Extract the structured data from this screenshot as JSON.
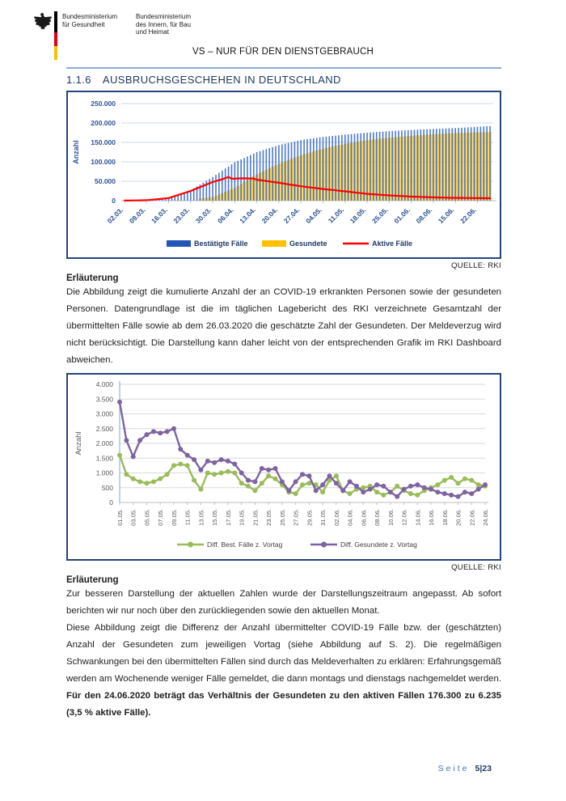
{
  "header": {
    "ministry1": {
      "line1": "Bundesministerium",
      "line2": "für Gesundheit"
    },
    "ministry2": {
      "line1": "Bundesministerium",
      "line2": "des Innern, für Bau",
      "line3": "und Heimat"
    },
    "classification": "VS – NUR FÜR DEN DIENSTGEBRAUCH"
  },
  "section": {
    "number": "1.1.6",
    "title": "AUSBRUCHSGESCHEHEN IN DEUTSCHLAND"
  },
  "source_label": "QUELLE: RKI",
  "explanation1": {
    "heading": "Erläuterung",
    "text": "Die Abbildung zeigt die kumulierte Anzahl der an COVID-19 erkrankten Personen sowie der gesundeten Personen. Datengrundlage ist die im täglichen Lagebericht des RKI verzeichnete Gesamtzahl der übermittelten Fälle sowie ab dem 26.03.2020 die geschätzte Zahl der Gesundeten. Der Meldeverzug wird nicht berücksichtigt. Die Darstellung kann daher leicht von der entsprechenden Grafik im RKI Dashboard abweichen."
  },
  "explanation2": {
    "heading": "Erläuterung",
    "para1": "Zur besseren Darstellung der aktuellen Zahlen wurde der Darstellungszeitraum angepasst. Ab sofort berichten wir nur noch über den zurückliegenden sowie den aktuellen Monat.",
    "para2_normal": "Diese Abbildung zeigt die Differenz der Anzahl übermittelter COVID-19 Fälle bzw. der (geschätzten) Anzahl der Gesundeten zum jeweiligen Vortag (siehe Abbildung auf S. 2). Die regelmäßigen Schwankungen bei den übermittelten Fällen sind durch das Meldeverhalten zu erklären: Erfahrungsgemäß werden am Wochenende weniger Fälle gemeldet, die dann montags und dienstags nachgemeldet werden. ",
    "para2_bold": "Für den 24.06.2020 beträgt das Verhältnis der Gesundeten zu den aktiven Fällen 176.300 zu 6.235 (3,5 % aktive Fälle)."
  },
  "footer": {
    "label": "Seite",
    "page": "5|23"
  },
  "colors": {
    "accent_navy": "#1F3864",
    "divider_blue": "#8EAADB",
    "chart_border": "#24447C",
    "grid_blue": "#CDD9EA",
    "grid_gray": "#D9D9D9",
    "axis_navy": "#2E5396",
    "axis_gray": "#595959",
    "baseline_gray": "#BFBFBF",
    "vertical_axis_blue": "#9DC3E6",
    "footer_blue": "#4472C4",
    "flag_black": "#000000",
    "flag_red": "#E1001A",
    "flag_gold": "#F6C500"
  },
  "chart_data": [
    {
      "type": "bar",
      "title": "",
      "ylabel": "Anzahl",
      "ylim": [
        0,
        250000
      ],
      "ytick_step": 50000,
      "ytick_labels": [
        "0",
        "50.000",
        "100.000",
        "150.000",
        "200.000",
        "250.000"
      ],
      "x_range": [
        "02.03.",
        "26.06."
      ],
      "days": 117,
      "xtick_labels": [
        "02.03.",
        "09.03.",
        "16.03.",
        "23.03.",
        "30.03.",
        "06.04.",
        "13.04.",
        "20.04.",
        "27.04.",
        "04.05.",
        "11.05.",
        "18.05.",
        "25.05.",
        "01.06.",
        "08.06.",
        "15.06.",
        "22.06."
      ],
      "xtick_day_indices": [
        0,
        7,
        14,
        21,
        28,
        35,
        42,
        49,
        56,
        63,
        70,
        77,
        84,
        91,
        98,
        105,
        112
      ],
      "interpolation_note": "daily bars/line linearly interpolated between [day_index, value] anchors read from the chart",
      "series": [
        {
          "name": "Bestätigte Fälle",
          "render": "bar",
          "color": "#4C79CE",
          "legend_color": "#2255B4",
          "anchors": [
            [
              0,
              150
            ],
            [
              7,
              1100
            ],
            [
              14,
              6800
            ],
            [
              21,
              27000
            ],
            [
              28,
              61000
            ],
            [
              35,
              99000
            ],
            [
              42,
              125000
            ],
            [
              49,
              143000
            ],
            [
              56,
              156000
            ],
            [
              63,
              164000
            ],
            [
              70,
              170000
            ],
            [
              77,
              175000
            ],
            [
              84,
              179000
            ],
            [
              91,
              182000
            ],
            [
              98,
              184500
            ],
            [
              105,
              187000
            ],
            [
              112,
              190000
            ],
            [
              116,
              192000
            ]
          ]
        },
        {
          "name": "Gesundete",
          "render": "bar",
          "color": "#FFC000",
          "anchors": [
            [
              0,
              0
            ],
            [
              23,
              0
            ],
            [
              24,
              5600
            ],
            [
              28,
              9000
            ],
            [
              35,
              33000
            ],
            [
              42,
              68000
            ],
            [
              49,
              95000
            ],
            [
              56,
              117000
            ],
            [
              63,
              134000
            ],
            [
              70,
              146000
            ],
            [
              77,
              156000
            ],
            [
              84,
              162000
            ],
            [
              91,
              167000
            ],
            [
              98,
              171000
            ],
            [
              105,
              174000
            ],
            [
              112,
              176000
            ],
            [
              116,
              176300
            ]
          ]
        },
        {
          "name": "Aktive Fälle",
          "render": "line",
          "color": "#FF0000",
          "anchors": [
            [
              0,
              150
            ],
            [
              7,
              1100
            ],
            [
              14,
              6600
            ],
            [
              21,
              25000
            ],
            [
              28,
              48000
            ],
            [
              31,
              55000
            ],
            [
              33,
              61000
            ],
            [
              34,
              56500
            ],
            [
              38,
              57500
            ],
            [
              41,
              57000
            ],
            [
              42,
              54000
            ],
            [
              49,
              46000
            ],
            [
              56,
              37000
            ],
            [
              63,
              30000
            ],
            [
              70,
              24000
            ],
            [
              77,
              17500
            ],
            [
              84,
              13500
            ],
            [
              91,
              10500
            ],
            [
              98,
              8500
            ],
            [
              105,
              7200
            ],
            [
              112,
              6500
            ],
            [
              116,
              6200
            ]
          ]
        }
      ],
      "legend_position": "bottom",
      "grid": true
    },
    {
      "type": "line",
      "title": "",
      "ylabel": "Anzahl",
      "ylim": [
        0,
        4000
      ],
      "ytick_step": 500,
      "ytick_labels": [
        "0",
        "500",
        "1.000",
        "1.500",
        "2.000",
        "2.500",
        "3.000",
        "3.500",
        "4.000"
      ],
      "n_points": 55,
      "x_start": "01.05.",
      "x_end": "24.06.",
      "xtick_labels": [
        "01.05.",
        "03.05.",
        "05.05.",
        "07.05.",
        "09.05.",
        "11.05.",
        "13.05.",
        "15.05.",
        "17.05.",
        "19.05.",
        "21.05.",
        "23.05.",
        "25.05.",
        "27.05.",
        "29.05.",
        "31.05.",
        "02.06.",
        "04.06.",
        "06.06.",
        "08.06.",
        "10.06.",
        "12.06.",
        "14.06.",
        "16.06.",
        "18.06.",
        "20.06.",
        "22.06.",
        "24.06."
      ],
      "xtick_point_indices": [
        0,
        2,
        4,
        6,
        8,
        10,
        12,
        14,
        16,
        18,
        20,
        22,
        24,
        26,
        28,
        30,
        32,
        34,
        36,
        38,
        40,
        42,
        44,
        46,
        48,
        50,
        52,
        54
      ],
      "series": [
        {
          "name": "Diff. Best. Fälle z. Vortag",
          "color": "#9BBB59",
          "values": [
            1600,
            950,
            800,
            700,
            650,
            700,
            800,
            950,
            1250,
            1300,
            1250,
            750,
            450,
            1000,
            950,
            1000,
            1050,
            1000,
            650,
            550,
            400,
            650,
            900,
            800,
            600,
            350,
            300,
            600,
            650,
            600,
            350,
            750,
            900,
            400,
            300,
            450,
            500,
            550,
            350,
            250,
            350,
            550,
            400,
            300,
            250,
            400,
            500,
            600,
            750,
            850,
            650,
            800,
            750,
            600,
            550
          ]
        },
        {
          "name": "Diff. Gesundete z. Vortag",
          "color": "#7E63A1",
          "values": [
            3400,
            2100,
            1550,
            2100,
            2300,
            2400,
            2350,
            2400,
            2500,
            1800,
            1600,
            1450,
            1100,
            1400,
            1350,
            1450,
            1400,
            1300,
            1000,
            750,
            700,
            1150,
            1100,
            1150,
            700,
            400,
            700,
            950,
            900,
            400,
            600,
            900,
            650,
            400,
            700,
            550,
            350,
            450,
            600,
            550,
            350,
            200,
            450,
            550,
            600,
            500,
            450,
            350,
            300,
            250,
            200,
            350,
            300,
            450,
            600
          ]
        }
      ],
      "legend_position": "bottom",
      "grid": true
    }
  ]
}
